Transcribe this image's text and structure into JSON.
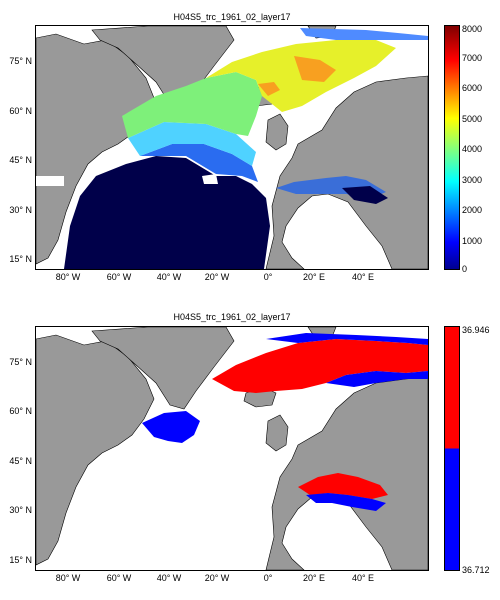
{
  "panels": [
    {
      "id": "top",
      "title": "H04S5_trc_1961_02_layer17",
      "lat_labels": [
        "75° N",
        "60° N",
        "45° N",
        "30° N",
        "15° N"
      ],
      "lon_labels": [
        "80° W",
        "60° W",
        "40° W",
        "20° W",
        "0°",
        "20° E",
        "40° E"
      ],
      "colorbar": {
        "type": "continuous",
        "ticks": [
          "8000",
          "7000",
          "6000",
          "5000",
          "4000",
          "3000",
          "2000",
          "1000",
          "0"
        ],
        "range": [
          0,
          8000
        ],
        "colormap": "jet"
      }
    },
    {
      "id": "bottom",
      "title": "H04S5_trc_1961_02_layer17",
      "lat_labels": [
        "75° N",
        "60° N",
        "45° N",
        "30° N",
        "15° N"
      ],
      "lon_labels": [
        "80° W",
        "60° W",
        "40° W",
        "20° W",
        "0°",
        "20° E",
        "40° E"
      ],
      "colorbar": {
        "type": "binary",
        "ticks": [
          "36.946",
          "36.712"
        ],
        "colors": [
          "#ff0000",
          "#0000ff"
        ]
      }
    }
  ],
  "colors": {
    "land": "#999999",
    "deep_navy": "#00004a",
    "red": "#ff0000",
    "blue": "#0000ff"
  }
}
